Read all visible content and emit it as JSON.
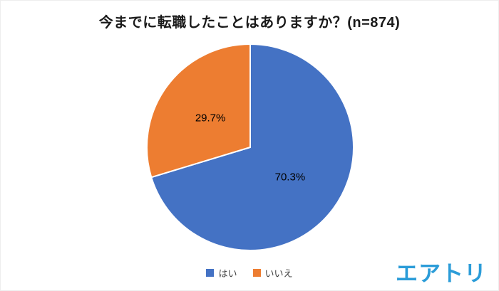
{
  "chart_data": {
    "type": "pie",
    "title": "今までに転職したことはありますか？(n=874)",
    "labels": [
      "はい",
      "いいえ"
    ],
    "values": [
      70.3,
      29.7
    ],
    "data_labels": [
      "70.3%",
      "29.7%"
    ],
    "colors": [
      "#4472C4",
      "#ED7D31"
    ],
    "unit": "%",
    "n": 874,
    "start_angle_deg": 0,
    "direction": "clockwise",
    "legend_position": "bottom",
    "slice_border_color": "#FFFFFF"
  },
  "logo": {
    "text": "エアトリ",
    "color": "#2B9CD8"
  }
}
